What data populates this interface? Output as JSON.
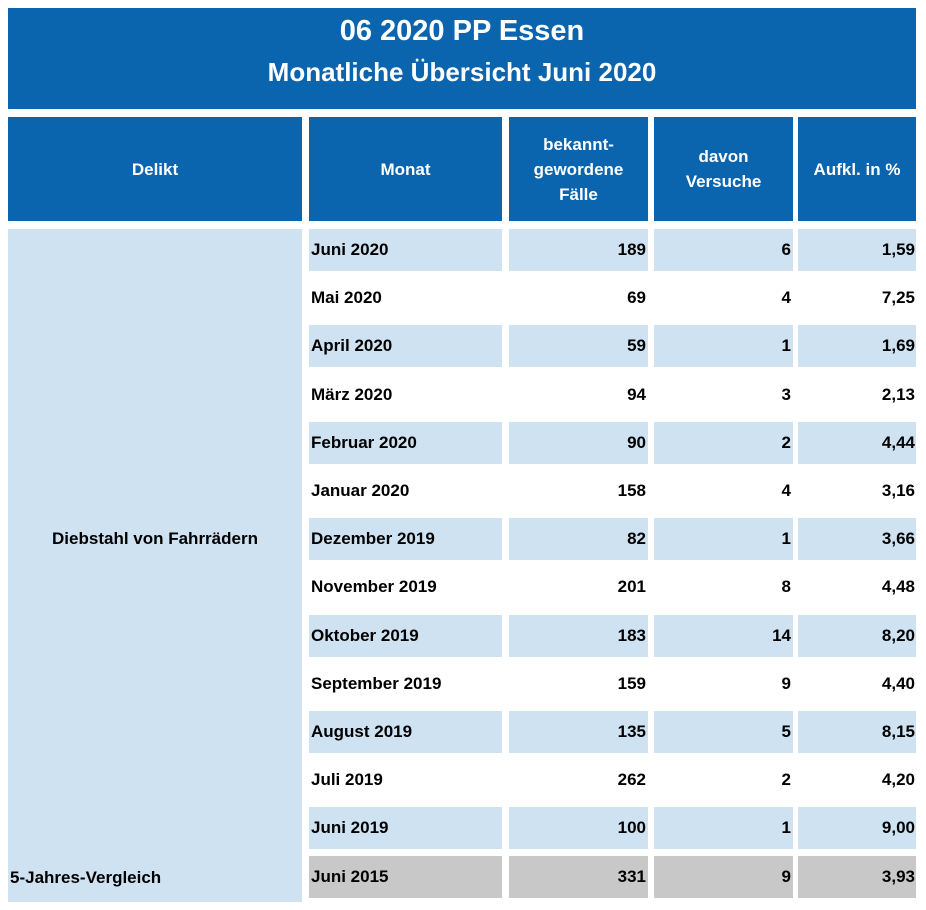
{
  "title": {
    "line1": "06 2020 PP Essen",
    "line2": "Monatliche Übersicht Juni 2020"
  },
  "headers": {
    "delikt": "Delikt",
    "monat": "Monat",
    "faelle": [
      "bekannt-",
      "gewordene",
      "Fälle"
    ],
    "versuche": [
      "davon",
      "Versuche"
    ],
    "aufkl": "Aufkl. in %"
  },
  "delikt": "Diebstahl von Fahrrädern",
  "rows": [
    {
      "monat": "Juni 2020",
      "faelle": "189",
      "versuche": "6",
      "aufkl": "1,59"
    },
    {
      "monat": "Mai 2020",
      "faelle": "69",
      "versuche": "4",
      "aufkl": "7,25"
    },
    {
      "monat": "April 2020",
      "faelle": "59",
      "versuche": "1",
      "aufkl": "1,69"
    },
    {
      "monat": "März 2020",
      "faelle": "94",
      "versuche": "3",
      "aufkl": "2,13"
    },
    {
      "monat": "Februar 2020",
      "faelle": "90",
      "versuche": "2",
      "aufkl": "4,44"
    },
    {
      "monat": "Januar 2020",
      "faelle": "158",
      "versuche": "4",
      "aufkl": "3,16"
    },
    {
      "monat": "Dezember 2019",
      "faelle": "82",
      "versuche": "1",
      "aufkl": "3,66"
    },
    {
      "monat": "November 2019",
      "faelle": "201",
      "versuche": "8",
      "aufkl": "4,48"
    },
    {
      "monat": "Oktober 2019",
      "faelle": "183",
      "versuche": "14",
      "aufkl": "8,20"
    },
    {
      "monat": "September 2019",
      "faelle": "159",
      "versuche": "9",
      "aufkl": "4,40"
    },
    {
      "monat": "August 2019",
      "faelle": "135",
      "versuche": "5",
      "aufkl": "8,15"
    },
    {
      "monat": "Juli 2019",
      "faelle": "262",
      "versuche": "2",
      "aufkl": "4,20"
    },
    {
      "monat": "Juni 2019",
      "faelle": "100",
      "versuche": "1",
      "aufkl": "9,00"
    }
  ],
  "vergleich": {
    "label": "5-Jahres-Vergleich",
    "monat": "Juni 2015",
    "faelle": "331",
    "versuche": "9",
    "aufkl": "3,93"
  },
  "colors": {
    "header_blue": "#0b64ae",
    "row_light_blue": "#cfe2f1",
    "row_gray": "#c8c8c8"
  }
}
